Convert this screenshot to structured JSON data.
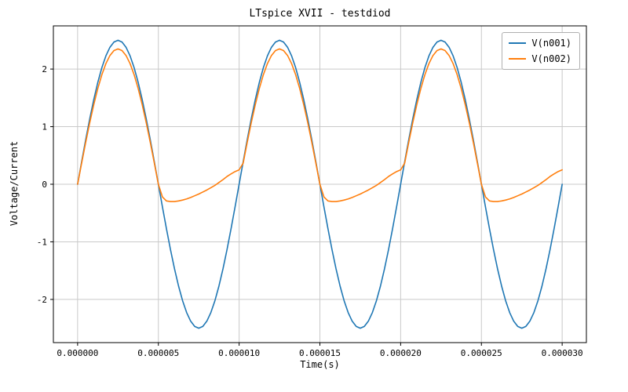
{
  "colors": {
    "background": "#ffffff",
    "axis": "#000000",
    "grid": "#c9c9c9",
    "legend_border": "#b0b0b0"
  },
  "chart_data": {
    "type": "line",
    "title": "LTspice XVII - testdiod",
    "xlabel": "Time(s)",
    "ylabel": "Voltage/Current",
    "grid": true,
    "legend_position": "upper right",
    "xlim_us": [
      -1.5,
      31.5
    ],
    "ylim": [
      -2.75,
      2.75
    ],
    "x_start_us": 0,
    "x_step_us": 0.25,
    "xticks": [
      {
        "v": 0,
        "label": "0.000000"
      },
      {
        "v": 5,
        "label": "0.000005"
      },
      {
        "v": 10,
        "label": "0.000010"
      },
      {
        "v": 15,
        "label": "0.000015"
      },
      {
        "v": 20,
        "label": "0.000020"
      },
      {
        "v": 25,
        "label": "0.000025"
      },
      {
        "v": 30,
        "label": "0.000030"
      }
    ],
    "yticks": [
      {
        "v": -2,
        "label": "-2"
      },
      {
        "v": -1,
        "label": "-1"
      },
      {
        "v": 0,
        "label": "0"
      },
      {
        "v": 1,
        "label": "1"
      },
      {
        "v": 2,
        "label": "2"
      }
    ],
    "series": [
      {
        "name": "V(n001)",
        "color": "#1f77b4",
        "values": [
          0,
          0.391,
          0.773,
          1.135,
          1.469,
          1.768,
          2.023,
          2.228,
          2.378,
          2.469,
          2.5,
          2.469,
          2.378,
          2.228,
          2.023,
          1.768,
          1.469,
          1.135,
          0.773,
          0.391,
          0,
          -0.391,
          -0.773,
          -1.135,
          -1.469,
          -1.768,
          -2.023,
          -2.228,
          -2.378,
          -2.469,
          -2.5,
          -2.469,
          -2.378,
          -2.228,
          -2.023,
          -1.768,
          -1.469,
          -1.135,
          -0.773,
          -0.391,
          0,
          0.391,
          0.773,
          1.135,
          1.469,
          1.768,
          2.023,
          2.228,
          2.378,
          2.469,
          2.5,
          2.469,
          2.378,
          2.228,
          2.023,
          1.768,
          1.469,
          1.135,
          0.773,
          0.391,
          0,
          -0.391,
          -0.773,
          -1.135,
          -1.469,
          -1.768,
          -2.023,
          -2.228,
          -2.378,
          -2.469,
          -2.5,
          -2.469,
          -2.378,
          -2.228,
          -2.023,
          -1.768,
          -1.469,
          -1.135,
          -0.773,
          -0.391,
          0,
          0.391,
          0.773,
          1.135,
          1.469,
          1.768,
          2.023,
          2.228,
          2.378,
          2.469,
          2.5,
          2.469,
          2.378,
          2.228,
          2.023,
          1.768,
          1.469,
          1.135,
          0.773,
          0.391,
          0,
          -0.391,
          -0.773,
          -1.135,
          -1.469,
          -1.768,
          -2.023,
          -2.228,
          -2.378,
          -2.469,
          -2.5,
          -2.469,
          -2.378,
          -2.228,
          -2.023,
          -1.768,
          -1.469,
          -1.135,
          -0.773,
          -0.391,
          0
        ]
      },
      {
        "name": "V(n002)",
        "color": "#ff7f0e",
        "values": [
          0,
          0.367,
          0.726,
          1.067,
          1.381,
          1.662,
          1.901,
          2.094,
          2.235,
          2.321,
          2.35,
          2.321,
          2.235,
          2.094,
          1.901,
          1.662,
          1.381,
          1.067,
          0.726,
          0.367,
          0,
          -0.22,
          -0.29,
          -0.3,
          -0.3,
          -0.29,
          -0.275,
          -0.255,
          -0.23,
          -0.2,
          -0.17,
          -0.135,
          -0.1,
          -0.06,
          -0.02,
          0.03,
          0.08,
          0.135,
          0.18,
          0.22,
          0.25,
          0.367,
          0.726,
          1.067,
          1.381,
          1.662,
          1.901,
          2.094,
          2.235,
          2.321,
          2.35,
          2.321,
          2.235,
          2.094,
          1.901,
          1.662,
          1.381,
          1.067,
          0.726,
          0.367,
          0,
          -0.22,
          -0.29,
          -0.3,
          -0.3,
          -0.29,
          -0.275,
          -0.255,
          -0.23,
          -0.2,
          -0.17,
          -0.135,
          -0.1,
          -0.06,
          -0.02,
          0.03,
          0.08,
          0.135,
          0.18,
          0.22,
          0.25,
          0.367,
          0.726,
          1.067,
          1.381,
          1.662,
          1.901,
          2.094,
          2.235,
          2.321,
          2.35,
          2.321,
          2.235,
          2.094,
          1.901,
          1.662,
          1.381,
          1.067,
          0.726,
          0.367,
          0,
          -0.22,
          -0.29,
          -0.3,
          -0.3,
          -0.29,
          -0.275,
          -0.255,
          -0.23,
          -0.2,
          -0.17,
          -0.135,
          -0.1,
          -0.06,
          -0.02,
          0.03,
          0.08,
          0.135,
          0.18,
          0.22,
          0.25
        ]
      }
    ]
  }
}
